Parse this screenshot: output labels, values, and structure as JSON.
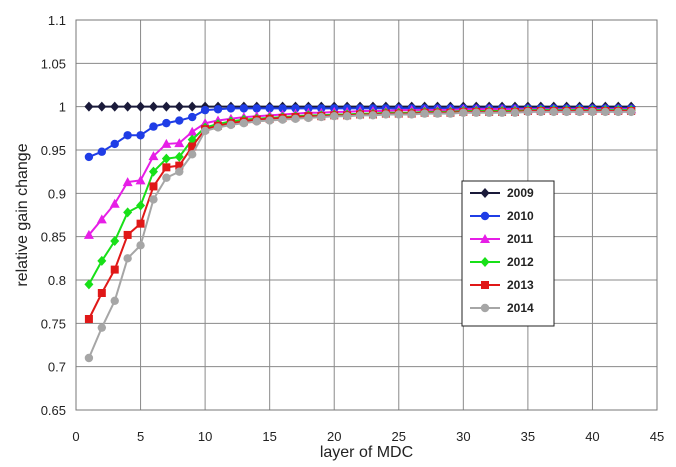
{
  "chart_data": {
    "type": "line",
    "title": "",
    "xlabel": "layer of MDC",
    "ylabel": "relative gain change",
    "xlim": [
      0,
      45
    ],
    "ylim": [
      0.65,
      1.1
    ],
    "xticks": [
      0,
      5,
      10,
      15,
      20,
      25,
      30,
      35,
      40,
      45
    ],
    "yticks": [
      0.65,
      0.7,
      0.75,
      0.8,
      0.85,
      0.9,
      0.95,
      1.0,
      1.05,
      1.1
    ],
    "xtick_labels": [
      "0",
      "5",
      "10",
      "15",
      "20",
      "25",
      "30",
      "35",
      "40",
      "45"
    ],
    "ytick_labels": [
      "0.65",
      "0.7",
      "0.75",
      "0.8",
      "0.85",
      "0.9",
      "0.95",
      "1",
      "1.05",
      "1.1"
    ],
    "grid": true,
    "legend_position": "center-right",
    "x": [
      1,
      2,
      3,
      4,
      5,
      6,
      7,
      8,
      9,
      10,
      11,
      12,
      13,
      14,
      15,
      16,
      17,
      18,
      19,
      20,
      21,
      22,
      23,
      24,
      25,
      26,
      27,
      28,
      29,
      30,
      31,
      32,
      33,
      34,
      35,
      36,
      37,
      38,
      39,
      40,
      41,
      42,
      43
    ],
    "series": [
      {
        "name": "2009",
        "color": "#1a1a3a",
        "marker": "diamond",
        "values": [
          1.0,
          1.0,
          1.0,
          1.0,
          1.0,
          1.0,
          1.0,
          1.0,
          1.0,
          1.0,
          1.0,
          1.0,
          1.0,
          1.0,
          1.0,
          1.0,
          1.0,
          1.0,
          1.0,
          1.0,
          1.0,
          1.0,
          1.0,
          1.0,
          1.0,
          1.0,
          1.0,
          1.0,
          1.0,
          1.0,
          1.0,
          1.0,
          1.0,
          1.0,
          1.0,
          1.0,
          1.0,
          1.0,
          1.0,
          1.0,
          1.0,
          1.0,
          1.0
        ]
      },
      {
        "name": "2010",
        "color": "#1f3de6",
        "marker": "circle",
        "values": [
          0.942,
          0.948,
          0.957,
          0.967,
          0.967,
          0.977,
          0.981,
          0.984,
          0.988,
          0.996,
          0.997,
          0.998,
          0.998,
          0.998,
          0.998,
          0.998,
          0.998,
          0.998,
          0.998,
          0.998,
          0.998,
          0.998,
          0.998,
          0.998,
          0.998,
          0.998,
          0.998,
          0.998,
          0.998,
          0.998,
          0.998,
          0.998,
          0.998,
          0.998,
          0.998,
          0.998,
          0.998,
          0.998,
          0.998,
          0.998,
          0.998,
          0.998,
          0.998
        ]
      },
      {
        "name": "2011",
        "color": "#e61ee6",
        "marker": "triangle",
        "values": [
          0.852,
          0.87,
          0.888,
          0.913,
          0.915,
          0.943,
          0.957,
          0.958,
          0.971,
          0.981,
          0.984,
          0.986,
          0.988,
          0.989,
          0.99,
          0.991,
          0.992,
          0.993,
          0.993,
          0.994,
          0.994,
          0.995,
          0.995,
          0.995,
          0.996,
          0.996,
          0.996,
          0.996,
          0.996,
          0.997,
          0.997,
          0.997,
          0.997,
          0.997,
          0.997,
          0.997,
          0.997,
          0.997,
          0.997,
          0.997,
          0.997,
          0.997,
          0.997
        ]
      },
      {
        "name": "2012",
        "color": "#18e018",
        "marker": "diamond",
        "values": [
          0.795,
          0.822,
          0.845,
          0.878,
          0.886,
          0.925,
          0.94,
          0.942,
          0.962,
          0.976,
          0.98,
          0.983,
          0.985,
          0.986,
          0.987,
          0.988,
          0.989,
          0.99,
          0.99,
          0.991,
          0.991,
          0.992,
          0.992,
          0.993,
          0.993,
          0.993,
          0.994,
          0.994,
          0.994,
          0.995,
          0.995,
          0.995,
          0.995,
          0.995,
          0.996,
          0.996,
          0.996,
          0.996,
          0.996,
          0.996,
          0.996,
          0.996,
          0.996
        ]
      },
      {
        "name": "2013",
        "color": "#e01818",
        "marker": "square",
        "values": [
          0.755,
          0.785,
          0.812,
          0.852,
          0.865,
          0.908,
          0.93,
          0.932,
          0.954,
          0.974,
          0.978,
          0.981,
          0.983,
          0.985,
          0.986,
          0.987,
          0.988,
          0.989,
          0.989,
          0.99,
          0.99,
          0.991,
          0.991,
          0.992,
          0.992,
          0.992,
          0.993,
          0.993,
          0.993,
          0.994,
          0.994,
          0.994,
          0.994,
          0.994,
          0.995,
          0.995,
          0.995,
          0.995,
          0.995,
          0.995,
          0.995,
          0.995,
          0.995
        ]
      },
      {
        "name": "2014",
        "color": "#a6a6a6",
        "marker": "circle",
        "values": [
          0.71,
          0.745,
          0.776,
          0.825,
          0.84,
          0.893,
          0.918,
          0.925,
          0.945,
          0.972,
          0.976,
          0.979,
          0.981,
          0.983,
          0.984,
          0.985,
          0.986,
          0.987,
          0.988,
          0.989,
          0.989,
          0.99,
          0.99,
          0.991,
          0.991,
          0.991,
          0.992,
          0.992,
          0.992,
          0.993,
          0.993,
          0.993,
          0.993,
          0.993,
          0.994,
          0.994,
          0.994,
          0.994,
          0.994,
          0.994,
          0.994,
          0.994,
          0.994
        ]
      }
    ]
  }
}
